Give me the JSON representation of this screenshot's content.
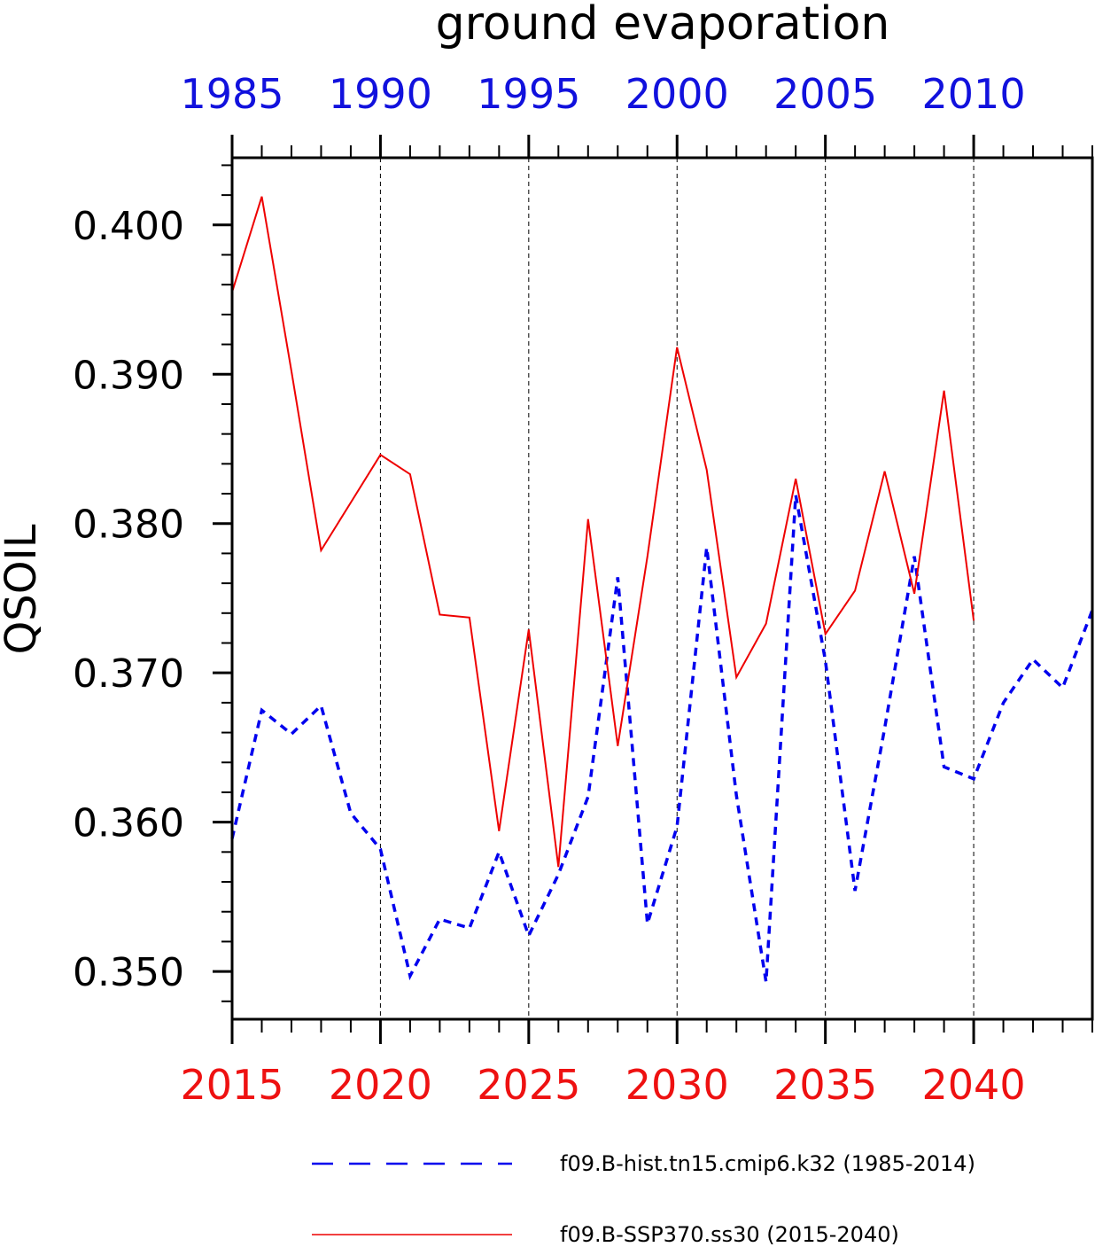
{
  "chart_data": {
    "type": "line",
    "title": "ground evaporation",
    "ylabel": "QSOIL",
    "xlabel": "",
    "ylim": [
      0.3468,
      0.4045
    ],
    "bottom_axis": {
      "color": "#ee1111",
      "xlim": [
        2015,
        2044
      ],
      "ticks": [
        "2015",
        "2020",
        "2025",
        "2030",
        "2035",
        "2040"
      ]
    },
    "top_axis": {
      "color": "#1111dd",
      "xlim": [
        1985,
        2014
      ],
      "ticks": [
        "1985",
        "1990",
        "1995",
        "2000",
        "2005",
        "2010"
      ]
    },
    "y_ticks": [
      "0.350",
      "0.360",
      "0.370",
      "0.380",
      "0.390",
      "0.400"
    ],
    "grid": "dashed vertical at major x ticks",
    "legend_position": "bottom",
    "series": [
      {
        "name": "f09.B-hist.tn15.cmip6.k32 (1985-2014)",
        "color": "#0000ee",
        "dash": "dashed",
        "x": [
          1985,
          1986,
          1987,
          1988,
          1989,
          1990,
          1991,
          1992,
          1993,
          1994,
          1995,
          1996,
          1997,
          1998,
          1999,
          2000,
          2001,
          2002,
          2003,
          2004,
          2005,
          2006,
          2007,
          2008,
          2009,
          2010,
          2011,
          2012,
          2013,
          2014
        ],
        "values": [
          0.3589,
          0.3675,
          0.3659,
          0.3678,
          0.3606,
          0.3582,
          0.3497,
          0.3535,
          0.3529,
          0.358,
          0.3524,
          0.3565,
          0.3617,
          0.3764,
          0.3532,
          0.3597,
          0.3784,
          0.3618,
          0.3493,
          0.3819,
          0.3708,
          0.3554,
          0.3663,
          0.3778,
          0.3637,
          0.3629,
          0.368,
          0.3709,
          0.369,
          0.3742
        ]
      },
      {
        "name": "f09.B-SSP370.ss30 (2015-2040)",
        "color": "#ee0000",
        "dash": "solid",
        "x": [
          2015,
          2016,
          2017,
          2018,
          2019,
          2020,
          2021,
          2022,
          2023,
          2024,
          2025,
          2026,
          2027,
          2028,
          2029,
          2030,
          2031,
          2032,
          2033,
          2034,
          2035,
          2036,
          2037,
          2038,
          2039,
          2040
        ],
        "values": [
          0.3955,
          0.4019,
          0.3902,
          0.3782,
          0.3814,
          0.3846,
          0.3833,
          0.3739,
          0.3737,
          0.3594,
          0.3729,
          0.357,
          0.3803,
          0.3651,
          0.3778,
          0.3918,
          0.3836,
          0.3697,
          0.3733,
          0.383,
          0.3726,
          0.3755,
          0.3835,
          0.3753,
          0.3889,
          0.3735
        ]
      }
    ]
  }
}
